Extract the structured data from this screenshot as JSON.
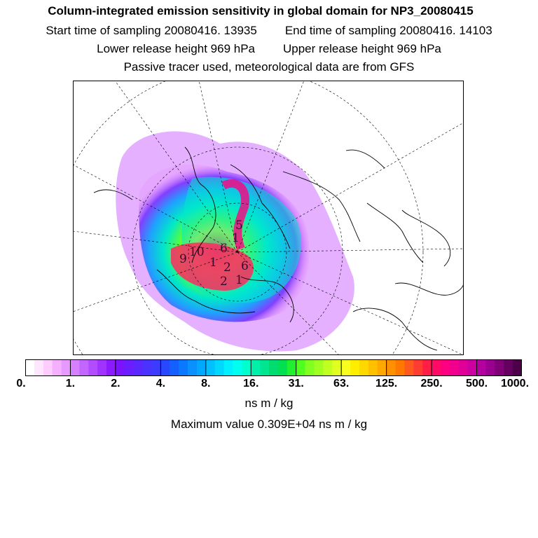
{
  "header": {
    "title": "Column-integrated emission sensitivity in global domain for NP3_20080415",
    "start_time": "Start time of sampling 20080416. 13935",
    "end_time": "End time of sampling 20080416. 14103",
    "lower_release": "Lower release height  969 hPa",
    "upper_release": "Upper release height  969 hPa",
    "tracer_note": "Passive tracer used, meteorological data are from GFS"
  },
  "colorbar": {
    "ticks": [
      "0.",
      "1.",
      "2.",
      "4.",
      "8.",
      "16.",
      "31.",
      "63.",
      "125.",
      "250.",
      "500.",
      "1000."
    ],
    "colors": [
      "#ffffff",
      "#ffe6ff",
      "#ffccff",
      "#f4b0ff",
      "#e699ff",
      "#d580ff",
      "#c266ff",
      "#b24dff",
      "#a033ff",
      "#8c1aff",
      "#7a14ff",
      "#6a1eff",
      "#5a28ff",
      "#4a32ff",
      "#3c3cff",
      "#2848ff",
      "#1460ff",
      "#0a78ff",
      "#0a90ff",
      "#00a8ff",
      "#00c0ff",
      "#00d8ff",
      "#00f0ff",
      "#00ffee",
      "#00ffcc",
      "#00f0aa",
      "#00e690",
      "#00dc70",
      "#00e050",
      "#20f030",
      "#50ff20",
      "#80ff20",
      "#a0ff20",
      "#c0ff20",
      "#e0ff20",
      "#f8ff20",
      "#ffee00",
      "#ffd800",
      "#ffc000",
      "#ffa800",
      "#ff9000",
      "#ff7800",
      "#ff5a1e",
      "#ff3c32",
      "#ff1e46",
      "#ff0a64",
      "#ff0080",
      "#f0008c",
      "#e00098",
      "#cc00a0",
      "#b400a0",
      "#9a0090",
      "#800078",
      "#660060",
      "#4c0048"
    ],
    "unit": "ns m / kg",
    "max_value": "Maximum value  0.309E+04 ns m / kg"
  },
  "map": {
    "contour_labels": [
      "10",
      "9",
      "6",
      "1",
      "2",
      "1",
      "6",
      "5",
      "2",
      "1"
    ]
  }
}
